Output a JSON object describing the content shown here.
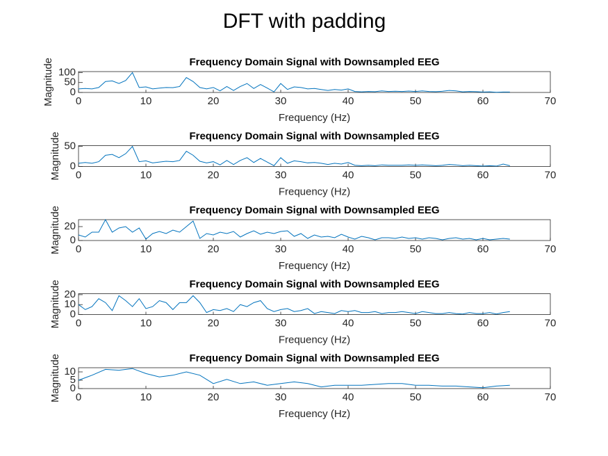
{
  "title": "DFT with padding",
  "chart_data": [
    {
      "type": "line",
      "title": "Frequency Domain Signal with Downsampled EEG",
      "xlabel": "Frequency (Hz)",
      "ylabel": "Magnitude",
      "xlim": [
        0,
        70
      ],
      "xticks": [
        0,
        10,
        20,
        30,
        40,
        50,
        60,
        70
      ],
      "ylim": [
        0,
        105
      ],
      "yticks": [
        0,
        50,
        100
      ],
      "series": [
        {
          "color": "#0072bd",
          "x": [
            0,
            1,
            2,
            3,
            4,
            5,
            6,
            7,
            8,
            9,
            10,
            11,
            12,
            13,
            14,
            15,
            16,
            17,
            18,
            19,
            20,
            21,
            22,
            23,
            24,
            25,
            26,
            27,
            28,
            29,
            30,
            31,
            32,
            33,
            34,
            35,
            36,
            37,
            38,
            39,
            40,
            41,
            42,
            43,
            44,
            45,
            46,
            47,
            48,
            49,
            50,
            51,
            52,
            53,
            54,
            55,
            56,
            57,
            58,
            59,
            60,
            61,
            62,
            63,
            64
          ],
          "values": [
            18,
            20,
            18,
            25,
            55,
            58,
            45,
            60,
            100,
            25,
            28,
            18,
            22,
            25,
            24,
            30,
            75,
            55,
            25,
            18,
            25,
            8,
            30,
            10,
            30,
            45,
            20,
            40,
            22,
            3,
            45,
            15,
            28,
            25,
            18,
            20,
            15,
            10,
            15,
            12,
            18,
            5,
            3,
            5,
            4,
            8,
            5,
            6,
            5,
            7,
            5,
            8,
            5,
            4,
            6,
            10,
            8,
            3,
            5,
            4,
            2,
            3,
            1,
            2,
            2
          ]
        }
      ]
    },
    {
      "type": "line",
      "title": "Frequency Domain Signal with Downsampled EEG",
      "xlabel": "Frequency (Hz)",
      "ylabel": "Magnitude",
      "xlim": [
        0,
        70
      ],
      "xticks": [
        0,
        10,
        20,
        30,
        40,
        50,
        60,
        70
      ],
      "ylim": [
        0,
        52
      ],
      "yticks": [
        0,
        50
      ],
      "series": [
        {
          "color": "#0072bd",
          "x": [
            0,
            1,
            2,
            3,
            4,
            5,
            6,
            7,
            8,
            9,
            10,
            11,
            12,
            13,
            14,
            15,
            16,
            17,
            18,
            19,
            20,
            21,
            22,
            23,
            24,
            25,
            26,
            27,
            28,
            29,
            30,
            31,
            32,
            33,
            34,
            35,
            36,
            37,
            38,
            39,
            40,
            41,
            42,
            43,
            44,
            45,
            46,
            47,
            48,
            49,
            50,
            51,
            52,
            53,
            54,
            55,
            56,
            57,
            58,
            59,
            60,
            61,
            62,
            63,
            64
          ],
          "values": [
            8,
            10,
            8,
            12,
            28,
            30,
            22,
            32,
            50,
            12,
            14,
            9,
            11,
            13,
            12,
            15,
            38,
            28,
            13,
            9,
            12,
            4,
            15,
            5,
            15,
            22,
            10,
            20,
            11,
            2,
            22,
            8,
            14,
            12,
            9,
            10,
            8,
            5,
            8,
            6,
            10,
            3,
            2,
            3,
            2,
            4,
            3,
            3,
            3,
            4,
            3,
            4,
            3,
            2,
            3,
            5,
            4,
            2,
            3,
            2,
            1,
            2,
            1,
            6,
            2
          ]
        }
      ]
    },
    {
      "type": "line",
      "title": "Frequency Domain Signal with Downsampled EEG",
      "xlabel": "Frequency (Hz)",
      "ylabel": "Magnitude",
      "xlim": [
        0,
        70
      ],
      "xticks": [
        0,
        10,
        20,
        30,
        40,
        50,
        60,
        70
      ],
      "ylim": [
        0,
        30
      ],
      "yticks": [
        0,
        20
      ],
      "series": [
        {
          "color": "#0072bd",
          "x": [
            0,
            1,
            2,
            3,
            4,
            5,
            6,
            7,
            8,
            9,
            10,
            11,
            12,
            13,
            14,
            15,
            16,
            17,
            18,
            19,
            20,
            21,
            22,
            23,
            24,
            25,
            26,
            27,
            28,
            29,
            30,
            31,
            32,
            33,
            34,
            35,
            36,
            37,
            38,
            39,
            40,
            41,
            42,
            43,
            44,
            45,
            46,
            47,
            48,
            49,
            50,
            51,
            52,
            53,
            54,
            55,
            56,
            57,
            58,
            59,
            60,
            61,
            62,
            63,
            64
          ],
          "values": [
            8,
            5,
            12,
            12,
            30,
            12,
            18,
            20,
            12,
            18,
            2,
            10,
            13,
            10,
            15,
            12,
            20,
            28,
            3,
            10,
            8,
            12,
            10,
            13,
            5,
            10,
            14,
            9,
            12,
            10,
            13,
            14,
            6,
            10,
            3,
            8,
            5,
            6,
            4,
            9,
            5,
            2,
            6,
            4,
            1,
            4,
            4,
            3,
            5,
            3,
            4,
            2,
            4,
            3,
            1,
            3,
            4,
            2,
            3,
            1,
            3,
            1,
            2,
            3,
            2
          ]
        }
      ]
    },
    {
      "type": "line",
      "title": "Frequency Domain Signal with Downsampled EEG",
      "xlabel": "Frequency (Hz)",
      "ylabel": "Magnitude",
      "xlim": [
        0,
        70
      ],
      "xticks": [
        0,
        10,
        20,
        30,
        40,
        50,
        60,
        70
      ],
      "ylim": [
        0,
        21
      ],
      "yticks": [
        0,
        10,
        20
      ],
      "series": [
        {
          "color": "#0072bd",
          "x": [
            0,
            1,
            2,
            3,
            4,
            5,
            6,
            7,
            8,
            9,
            10,
            11,
            12,
            13,
            14,
            15,
            16,
            17,
            18,
            19,
            20,
            21,
            22,
            23,
            24,
            25,
            26,
            27,
            28,
            29,
            30,
            31,
            32,
            33,
            34,
            35,
            36,
            37,
            38,
            39,
            40,
            41,
            42,
            43,
            44,
            45,
            46,
            47,
            48,
            49,
            50,
            51,
            52,
            53,
            54,
            55,
            56,
            57,
            58,
            59,
            60,
            61,
            62,
            63,
            64
          ],
          "values": [
            10,
            5,
            8,
            16,
            12,
            4,
            19,
            14,
            8,
            16,
            6,
            8,
            14,
            12,
            5,
            12,
            12,
            19,
            12,
            2,
            5,
            4,
            6,
            3,
            10,
            8,
            12,
            14,
            6,
            3,
            5,
            6,
            3,
            4,
            6,
            1,
            3,
            2,
            1,
            4,
            3,
            4,
            2,
            2,
            3,
            1,
            2,
            2,
            3,
            2,
            1,
            3,
            2,
            1,
            1,
            2,
            1,
            0.5,
            2,
            1,
            1,
            2,
            0.5,
            2,
            3
          ]
        }
      ]
    },
    {
      "type": "line",
      "title": "Frequency Domain Signal with Downsampled EEG",
      "xlabel": "Frequency (Hz)",
      "ylabel": "Magnitude",
      "xlim": [
        0,
        70
      ],
      "xticks": [
        0,
        10,
        20,
        30,
        40,
        50,
        60,
        70
      ],
      "ylim": [
        0,
        12.5
      ],
      "yticks": [
        0,
        5,
        10
      ],
      "series": [
        {
          "color": "#0072bd",
          "x": [
            0,
            2,
            4,
            6,
            8,
            10,
            12,
            14,
            16,
            18,
            20,
            22,
            24,
            26,
            28,
            30,
            32,
            34,
            36,
            38,
            40,
            42,
            44,
            46,
            48,
            50,
            52,
            54,
            56,
            58,
            60,
            62,
            64
          ],
          "values": [
            5,
            8,
            11.5,
            11,
            12,
            9,
            7,
            8,
            10,
            8,
            3,
            5.5,
            3,
            4,
            2,
            3,
            4,
            3,
            1,
            2,
            2,
            2,
            2.5,
            3,
            3,
            2,
            2,
            1.5,
            1.5,
            1,
            0.5,
            1.5,
            2
          ]
        }
      ]
    }
  ]
}
